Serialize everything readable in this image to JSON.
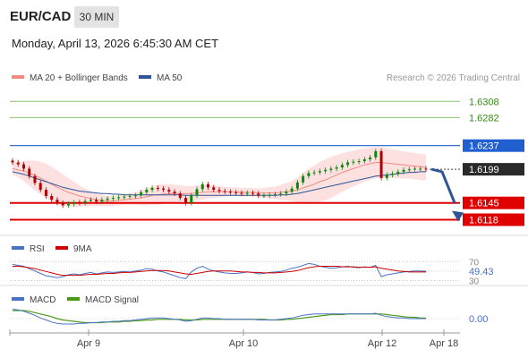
{
  "header": {
    "pair": "EUR/CAD",
    "timeframe": "30 MIN",
    "datetime": "Monday, April 13, 2026 6:45:30 AM CET"
  },
  "legend": {
    "ma20": "MA 20 + Bollinger Bands",
    "ma50": "MA 50",
    "credit": "Research © 2026 Trading Central"
  },
  "colors": {
    "ma20": "#f28b82",
    "ma50": "#2f5597",
    "band_fill": "#fde0e0",
    "up": "#0a8a0a",
    "down": "#b00000",
    "resistance": "#8cc46a",
    "support": "#e00000",
    "pivot": "#1f5fd0",
    "arrow": "#2f5597",
    "rsi": "#4a72c4",
    "rsi_ma": "#cc0000",
    "macd": "#4a72c4",
    "macd_signal": "#4a9a1a"
  },
  "chart_data": [
    {
      "type": "candlestick",
      "x_ticks": [
        "Apr 9",
        "Apr 10",
        "Apr 12",
        "Apr 18"
      ],
      "y_range": [
        1.61,
        1.633
      ],
      "levels": [
        {
          "label": "1.6308",
          "value": 1.6308,
          "kind": "resistance"
        },
        {
          "label": "1.6282",
          "value": 1.6282,
          "kind": "resistance"
        },
        {
          "label": "1.6237",
          "value": 1.6237,
          "kind": "pivot"
        },
        {
          "label": "1.6199",
          "value": 1.6199,
          "kind": "current"
        },
        {
          "label": "1.6145",
          "value": 1.6145,
          "kind": "support"
        },
        {
          "label": "1.6118",
          "value": 1.6118,
          "kind": "support"
        }
      ],
      "close": [
        1.621,
        1.6207,
        1.62,
        1.6188,
        1.6177,
        1.6166,
        1.6156,
        1.615,
        1.6145,
        1.6141,
        1.6143,
        1.6146,
        1.6145,
        1.6148,
        1.615,
        1.6147,
        1.615,
        1.6152,
        1.6153,
        1.6154,
        1.6155,
        1.6156,
        1.6157,
        1.6162,
        1.6166,
        1.6169,
        1.6168,
        1.6166,
        1.6163,
        1.616,
        1.6153,
        1.6145,
        1.6157,
        1.6167,
        1.6175,
        1.617,
        1.6166,
        1.6164,
        1.6163,
        1.6162,
        1.6161,
        1.616,
        1.6161,
        1.616,
        1.6157,
        1.6157,
        1.6158,
        1.6159,
        1.616,
        1.6163,
        1.6168,
        1.6178,
        1.6188,
        1.6193,
        1.6194,
        1.6196,
        1.6198,
        1.62,
        1.6202,
        1.6206,
        1.621,
        1.6211,
        1.6212,
        1.6215,
        1.6218,
        1.6228,
        1.6185,
        1.619,
        1.6192,
        1.6195,
        1.6198,
        1.6199,
        1.62,
        1.62,
        1.6199
      ],
      "ma20": [
        1.62,
        1.6198,
        1.6196,
        1.6193,
        1.6189,
        1.6185,
        1.618,
        1.6175,
        1.617,
        1.6166,
        1.6162,
        1.6159,
        1.6156,
        1.6154,
        1.6152,
        1.615,
        1.6149,
        1.6148,
        1.6148,
        1.6149,
        1.615,
        1.6151,
        1.6152,
        1.6153,
        1.6155,
        1.6157,
        1.6158,
        1.6159,
        1.616,
        1.616,
        1.616,
        1.616,
        1.616,
        1.6161,
        1.6162,
        1.6163,
        1.6163,
        1.6163,
        1.6163,
        1.6163,
        1.6163,
        1.6162,
        1.6162,
        1.6162,
        1.6161,
        1.6161,
        1.6161,
        1.6161,
        1.6162,
        1.6163,
        1.6164,
        1.6166,
        1.6169,
        1.6172,
        1.6175,
        1.6179,
        1.6182,
        1.6186,
        1.619,
        1.6194,
        1.6197,
        1.62,
        1.6203,
        1.6206,
        1.6208,
        1.621,
        1.621,
        1.6209,
        1.6208,
        1.6207,
        1.6206,
        1.6205,
        1.6204,
        1.6203,
        1.6202
      ],
      "ma50": [
        1.6195,
        1.6193,
        1.6191,
        1.6188,
        1.6185,
        1.6182,
        1.6179,
        1.6176,
        1.6173,
        1.617,
        1.6168,
        1.6166,
        1.6164,
        1.6163,
        1.6162,
        1.6161,
        1.616,
        1.616,
        1.6159,
        1.6159,
        1.6158,
        1.6158,
        1.6158,
        1.6158,
        1.6158,
        1.6158,
        1.6158,
        1.6158,
        1.6158,
        1.6158,
        1.6158,
        1.6157,
        1.6157,
        1.6157,
        1.6157,
        1.6157,
        1.6157,
        1.6157,
        1.6157,
        1.6157,
        1.6157,
        1.6157,
        1.6157,
        1.6157,
        1.6157,
        1.6157,
        1.6157,
        1.6157,
        1.6158,
        1.6158,
        1.6159,
        1.616,
        1.6162,
        1.6164,
        1.6166,
        1.6168,
        1.617,
        1.6172,
        1.6174,
        1.6176,
        1.6178,
        1.618,
        1.6182,
        1.6184,
        1.6186,
        1.6188,
        1.6189,
        1.619,
        1.6191,
        1.6192,
        1.6193,
        1.6194,
        1.6194,
        1.6195,
        1.6195
      ],
      "band_width": [
        0.001,
        0.0012,
        0.0016,
        0.002,
        0.0024,
        0.0026,
        0.0028,
        0.0028,
        0.0027,
        0.0025,
        0.0023,
        0.002,
        0.0017,
        0.0014,
        0.0012,
        0.001,
        0.0009,
        0.0008,
        0.0008,
        0.0008,
        0.0008,
        0.0009,
        0.001,
        0.0012,
        0.0014,
        0.0015,
        0.0016,
        0.0016,
        0.0015,
        0.0014,
        0.0013,
        0.0012,
        0.0012,
        0.0012,
        0.0012,
        0.0011,
        0.001,
        0.0009,
        0.0008,
        0.0007,
        0.0007,
        0.0007,
        0.0007,
        0.0007,
        0.0007,
        0.0008,
        0.0009,
        0.001,
        0.0012,
        0.0014,
        0.0016,
        0.002,
        0.0024,
        0.0028,
        0.003,
        0.0032,
        0.0033,
        0.0033,
        0.0032,
        0.0031,
        0.003,
        0.0029,
        0.0028,
        0.0027,
        0.0026,
        0.0025,
        0.0025,
        0.0024,
        0.0023,
        0.0022,
        0.0022,
        0.0021,
        0.0021,
        0.0021,
        0.0021
      ],
      "projection": [
        1.6199,
        1.6195,
        1.6145,
        1.6118
      ]
    },
    {
      "type": "line",
      "name": "RSI",
      "legend": [
        "RSI",
        "9MA"
      ],
      "ticks": [
        "70",
        "30"
      ],
      "last_label": "49.43",
      "ylim": [
        25,
        80
      ],
      "rsi": [
        64,
        62,
        60,
        55,
        50,
        45,
        40,
        38,
        36,
        38,
        42,
        44,
        42,
        45,
        47,
        44,
        46,
        48,
        47,
        48,
        49,
        48,
        50,
        52,
        55,
        54,
        50,
        48,
        44,
        40,
        36,
        34,
        48,
        56,
        60,
        54,
        50,
        48,
        46,
        45,
        45,
        46,
        48,
        47,
        44,
        45,
        47,
        48,
        49,
        52,
        56,
        58,
        62,
        66,
        64,
        60,
        58,
        56,
        57,
        59,
        60,
        58,
        57,
        59,
        58,
        62,
        38,
        42,
        44,
        46,
        48,
        49,
        50,
        50,
        49.43
      ],
      "ma9": [
        60,
        60,
        59,
        57,
        55,
        52,
        49,
        46,
        43,
        41,
        41,
        41,
        41,
        42,
        43,
        43,
        44,
        45,
        45,
        46,
        47,
        47,
        48,
        49,
        50,
        51,
        51,
        51,
        50,
        48,
        46,
        44,
        43,
        45,
        47,
        49,
        50,
        50,
        50,
        50,
        49,
        48,
        48,
        47,
        47,
        46,
        46,
        46,
        47,
        48,
        49,
        51,
        54,
        57,
        59,
        60,
        60,
        60,
        60,
        59,
        59,
        59,
        58,
        58,
        58,
        59,
        56,
        54,
        52,
        50,
        49,
        48,
        48,
        48,
        48
      ]
    },
    {
      "type": "line",
      "name": "MACD",
      "legend": [
        "MACD",
        "MACD Signal"
      ],
      "last_label": "0.00",
      "ylim": [
        -0.0016,
        0.0016
      ],
      "macd": [
        0.0014,
        0.0013,
        0.0011,
        0.0008,
        0.0005,
        0.0001,
        -0.0002,
        -0.0005,
        -0.0007,
        -0.0008,
        -0.0008,
        -0.0008,
        -0.0007,
        -0.0007,
        -0.0006,
        -0.0006,
        -0.0005,
        -0.0005,
        -0.0004,
        -0.0004,
        -0.0003,
        -0.0003,
        -0.0002,
        -0.0001,
        0.0,
        0.0001,
        0.0001,
        0.0001,
        0.0,
        -0.0001,
        -0.0002,
        -0.0004,
        -0.0003,
        -0.0001,
        0.0001,
        0.0001,
        0.0,
        0.0,
        -0.0001,
        -0.0001,
        -0.0001,
        -0.0001,
        -0.0001,
        -0.0001,
        -0.0002,
        -0.0002,
        -0.0002,
        -0.0002,
        -0.0001,
        0.0,
        0.0001,
        0.0003,
        0.0005,
        0.0006,
        0.0007,
        0.0007,
        0.0007,
        0.0007,
        0.0007,
        0.0007,
        0.0007,
        0.0007,
        0.0007,
        0.0007,
        0.0007,
        0.0008,
        0.0005,
        0.0003,
        0.0002,
        0.0001,
        0.0001,
        0.0,
        0.0,
        0.0,
        0.0
      ],
      "signal": [
        0.0012,
        0.0012,
        0.0012,
        0.0011,
        0.0009,
        0.0007,
        0.0005,
        0.0003,
        0.0,
        -0.0002,
        -0.0003,
        -0.0004,
        -0.0005,
        -0.0006,
        -0.0006,
        -0.0006,
        -0.0006,
        -0.0005,
        -0.0005,
        -0.0005,
        -0.0004,
        -0.0004,
        -0.0003,
        -0.0003,
        -0.0002,
        -0.0002,
        -0.0001,
        -0.0001,
        -0.0001,
        -0.0001,
        -0.0001,
        -0.0002,
        -0.0002,
        -0.0002,
        -0.0001,
        -0.0001,
        -0.0001,
        -0.0001,
        -0.0001,
        -0.0001,
        -0.0001,
        -0.0001,
        -0.0001,
        -0.0001,
        -0.0001,
        -0.0001,
        -0.0002,
        -0.0002,
        -0.0002,
        -0.0001,
        -0.0001,
        0.0,
        0.0001,
        0.0002,
        0.0003,
        0.0004,
        0.0005,
        0.0006,
        0.0006,
        0.0006,
        0.0007,
        0.0007,
        0.0007,
        0.0007,
        0.0007,
        0.0007,
        0.0007,
        0.0006,
        0.0005,
        0.0004,
        0.0003,
        0.0002,
        0.0002,
        0.0001,
        0.0001
      ]
    }
  ]
}
